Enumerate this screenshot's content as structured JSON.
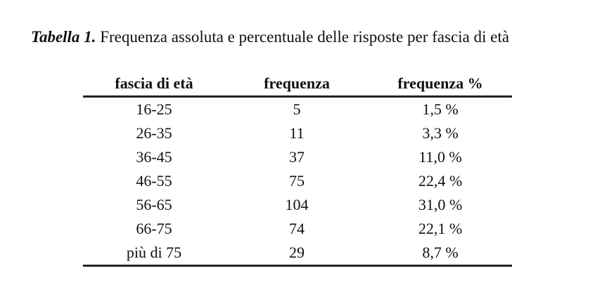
{
  "caption": {
    "label": "Tabella 1.",
    "text": "Frequenza assoluta e percentuale delle risposte per fascia di età"
  },
  "table": {
    "header": [
      "fascia di età",
      "frequenza",
      "frequenza %"
    ],
    "rows": [
      [
        "16-25",
        "5",
        "1,5 %"
      ],
      [
        "26-35",
        "11",
        "3,3 %"
      ],
      [
        "36-45",
        "37",
        "11,0 %"
      ],
      [
        "46-55",
        "75",
        "22,4 %"
      ],
      [
        "56-65",
        "104",
        "31,0 %"
      ],
      [
        "66-75",
        "74",
        "22,1 %"
      ],
      [
        "più di 75",
        "29",
        "8,7 %"
      ]
    ]
  }
}
